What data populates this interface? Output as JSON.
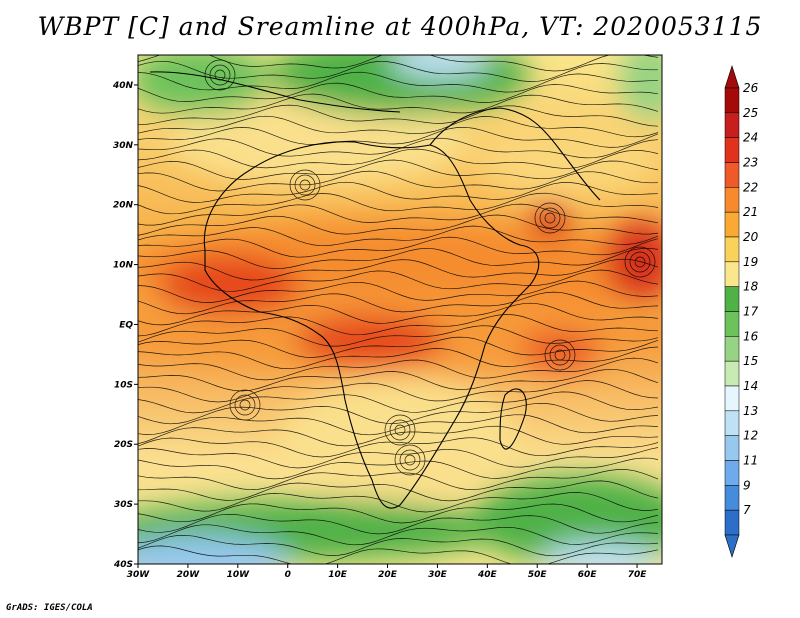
{
  "title": "WBPT [C] and Sreamline at 400hPa, VT: 2020053115",
  "credit": "GrADS: IGES/COLA",
  "map": {
    "lat_labels": [
      {
        "lat": 40,
        "text": "40N"
      },
      {
        "lat": 30,
        "text": "30N"
      },
      {
        "lat": 20,
        "text": "20N"
      },
      {
        "lat": 10,
        "text": "10N"
      },
      {
        "lat": 0,
        "text": "EQ"
      },
      {
        "lat": -10,
        "text": "10S"
      },
      {
        "lat": -20,
        "text": "20S"
      },
      {
        "lat": -30,
        "text": "30S"
      },
      {
        "lat": -40,
        "text": "40S"
      }
    ],
    "lon_labels": [
      {
        "lon": -30,
        "text": "30W"
      },
      {
        "lon": -20,
        "text": "20W"
      },
      {
        "lon": -10,
        "text": "10W"
      },
      {
        "lon": 0,
        "text": "0"
      },
      {
        "lon": 10,
        "text": "10E"
      },
      {
        "lon": 20,
        "text": "20E"
      },
      {
        "lon": 30,
        "text": "30E"
      },
      {
        "lon": 40,
        "text": "40E"
      },
      {
        "lon": 50,
        "text": "50E"
      },
      {
        "lon": 60,
        "text": "60E"
      },
      {
        "lon": 70,
        "text": "70E"
      }
    ]
  },
  "colorbar": {
    "labels": [
      "26",
      "25",
      "24",
      "23",
      "22",
      "21",
      "20",
      "19",
      "18",
      "17",
      "16",
      "15",
      "14",
      "13",
      "12",
      "11",
      "9",
      "7"
    ],
    "colors": [
      "#a50a0a",
      "#c81e1e",
      "#e1321e",
      "#f05a28",
      "#f78a2c",
      "#faaa32",
      "#fad25a",
      "#fae68c",
      "#4fb146",
      "#6dc25c",
      "#96d382",
      "#c8ebb4",
      "#e6f6ff",
      "#bee1f6",
      "#96c8f0",
      "#6eaaec",
      "#468cdc",
      "#2d6ec8"
    ]
  }
}
